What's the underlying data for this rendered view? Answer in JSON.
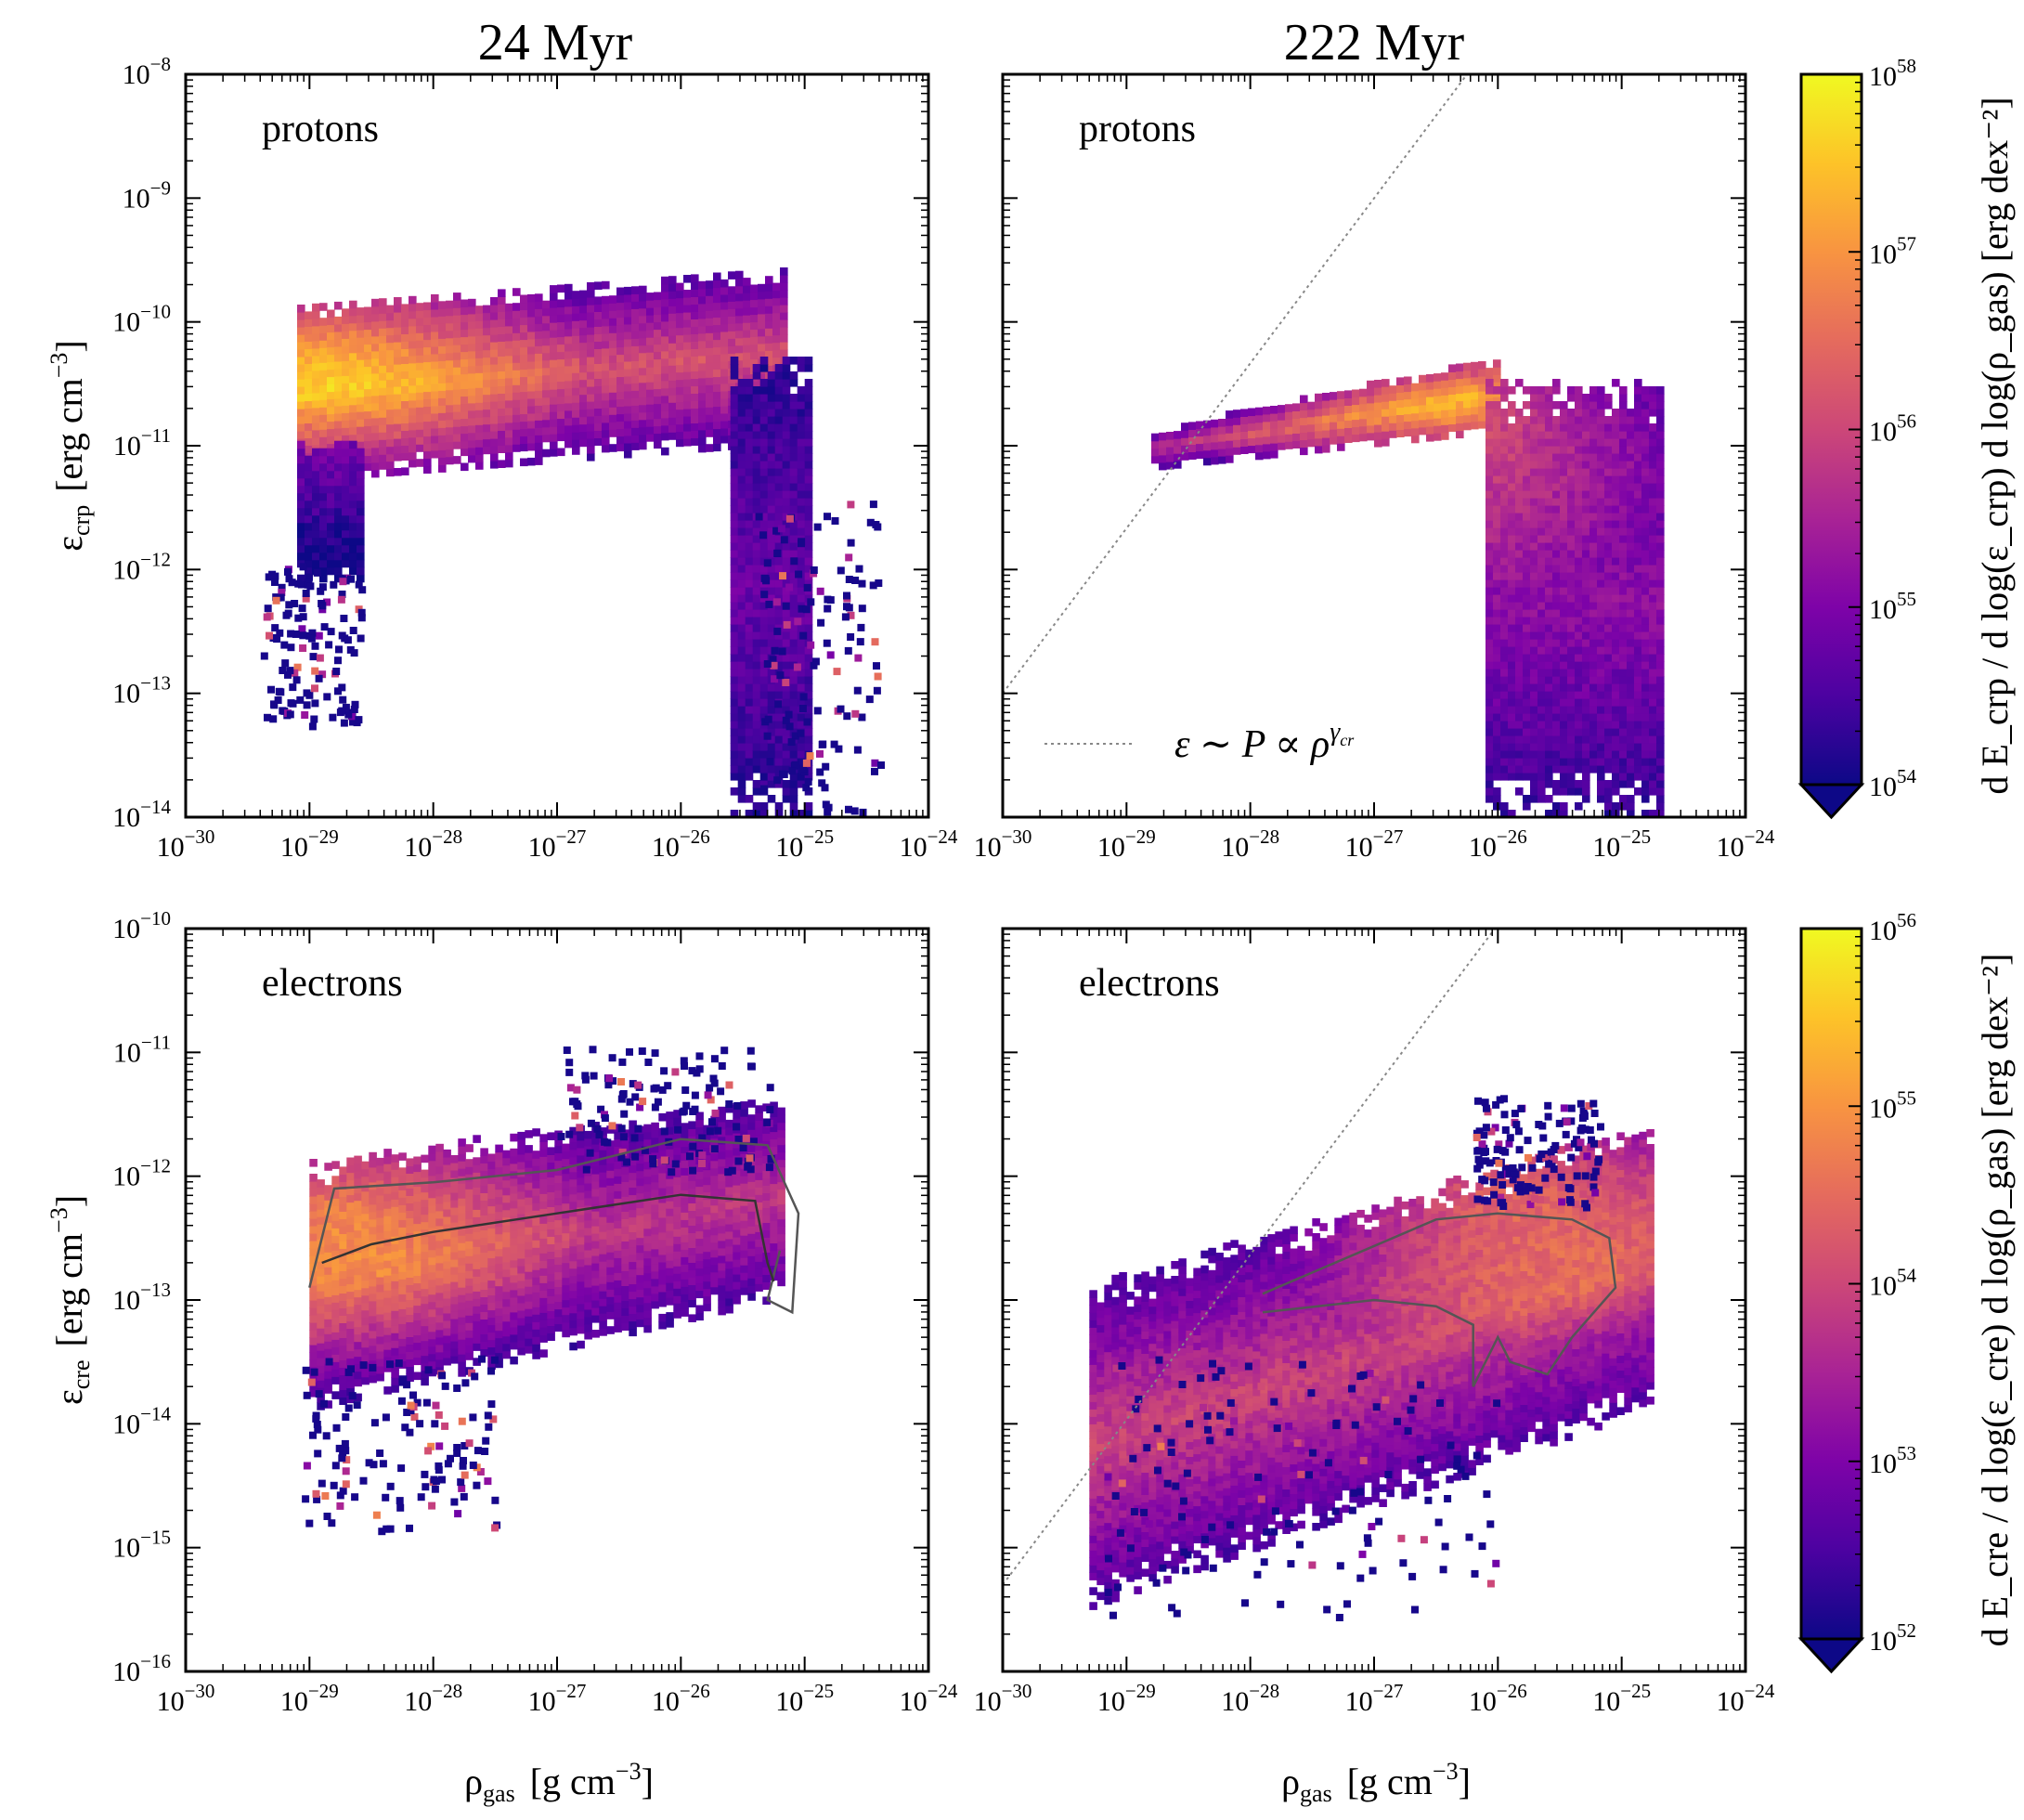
{
  "chart_data": {
    "type": "heatmap",
    "columns": [
      {
        "title": "24 Myr"
      },
      {
        "title": "222 Myr"
      }
    ],
    "x_axis": {
      "label": "ρ_gas [g cm^−3]",
      "label_main": "ρ",
      "label_sub": "gas",
      "label_units": "[g cm",
      "label_units_exp": "−3",
      "label_units_close": "]",
      "scale": "log",
      "xlim_exp": [
        -30,
        -24
      ],
      "ticks": [
        {
          "exp": -30,
          "text": "10",
          "sup": "−30"
        },
        {
          "exp": -29,
          "text": "10",
          "sup": "−29"
        },
        {
          "exp": -28,
          "text": "10",
          "sup": "−28"
        },
        {
          "exp": -27,
          "text": "10",
          "sup": "−27"
        },
        {
          "exp": -26,
          "text": "10",
          "sup": "−26"
        },
        {
          "exp": -25,
          "text": "10",
          "sup": "−25"
        },
        {
          "exp": -24,
          "text": "10",
          "sup": "−24"
        }
      ]
    },
    "rows": [
      {
        "species": "protons",
        "ylabel": "ε_crp [erg cm^−3]",
        "ylabel_main": "ε",
        "ylabel_sub": "crp",
        "ylabel_units": "[erg cm",
        "ylabel_units_exp": "−3",
        "ylabel_units_close": "]",
        "ylim_exp": [
          -14,
          -8
        ],
        "ticks": [
          {
            "exp": -14,
            "text": "10",
            "sup": "−14"
          },
          {
            "exp": -13,
            "text": "10",
            "sup": "−13"
          },
          {
            "exp": -12,
            "text": "10",
            "sup": "−12"
          },
          {
            "exp": -11,
            "text": "10",
            "sup": "−11"
          },
          {
            "exp": -10,
            "text": "10",
            "sup": "−10"
          },
          {
            "exp": -9,
            "text": "10",
            "sup": "−9"
          },
          {
            "exp": -8,
            "text": "10",
            "sup": "−8"
          }
        ],
        "colorbar": {
          "label": "d E_crp / d log(ε_crp) d log(ρ_gas) [erg dex^−2]",
          "label_text": "d E_crp / d log(ε_crp) d log(ρ_gas)  [erg dex⁻²]",
          "range_exp": [
            54,
            58
          ],
          "ticks": [
            {
              "exp": 54,
              "text": "10",
              "sup": "54"
            },
            {
              "exp": 55,
              "text": "10",
              "sup": "55"
            },
            {
              "exp": 56,
              "text": "10",
              "sup": "56"
            },
            {
              "exp": 57,
              "text": "10",
              "sup": "57"
            },
            {
              "exp": 58,
              "text": "10",
              "sup": "58"
            }
          ],
          "colormap": "plasma",
          "extend": "min"
        }
      },
      {
        "species": "electrons",
        "ylabel": "ε_cre [erg cm^−3]",
        "ylabel_main": "ε",
        "ylabel_sub": "cre",
        "ylabel_units": "[erg cm",
        "ylabel_units_exp": "−3",
        "ylabel_units_close": "]",
        "ylim_exp": [
          -16,
          -10
        ],
        "ticks": [
          {
            "exp": -16,
            "text": "10",
            "sup": "−16"
          },
          {
            "exp": -15,
            "text": "10",
            "sup": "−15"
          },
          {
            "exp": -14,
            "text": "10",
            "sup": "−14"
          },
          {
            "exp": -13,
            "text": "10",
            "sup": "−13"
          },
          {
            "exp": -12,
            "text": "10",
            "sup": "−12"
          },
          {
            "exp": -11,
            "text": "10",
            "sup": "−11"
          },
          {
            "exp": -10,
            "text": "10",
            "sup": "−10"
          }
        ],
        "colorbar": {
          "label": "d E_cre / d log(ε_cre) d log(ρ_gas) [erg dex^−2]",
          "label_text": "d E_cre / d log(ε_cre) d log(ρ_gas)  [erg dex⁻²]",
          "range_exp": [
            52,
            56
          ],
          "ticks": [
            {
              "exp": 52,
              "text": "10",
              "sup": "52"
            },
            {
              "exp": 53,
              "text": "10",
              "sup": "53"
            },
            {
              "exp": 54,
              "text": "10",
              "sup": "54"
            },
            {
              "exp": 55,
              "text": "10",
              "sup": "55"
            },
            {
              "exp": 56,
              "text": "10",
              "sup": "56"
            }
          ],
          "colormap": "plasma",
          "extend": "min"
        }
      }
    ],
    "panels": [
      {
        "row": 0,
        "col": 0,
        "label": "protons",
        "regions": [
          {
            "name": "upper-band",
            "x_exp": [
              -29.1,
              -25.2
            ],
            "y_exp_start": [
              -11.3,
              -9.9
            ],
            "y_exp_end": [
              -11.0,
              -9.6
            ],
            "intensity": 0.55
          },
          {
            "name": "high-density-tail",
            "x_exp": [
              -25.6,
              -25.0
            ],
            "y_exp": [
              -14.0,
              -10.3
            ],
            "intensity": 0.2
          },
          {
            "name": "low-density-edge",
            "x_exp": [
              -29.1,
              -28.6
            ],
            "y_exp": [
              -12.1,
              -11.0
            ],
            "intensity": 0.05
          }
        ],
        "scatter": [
          {
            "x_exp": [
              -29.4,
              -28.6
            ],
            "y_exp": [
              -13.3,
              -12.0
            ]
          },
          {
            "x_exp": [
              -25.4,
              -24.4
            ],
            "y_exp": [
              -14.0,
              -11.5
            ]
          }
        ],
        "peak": {
          "x_exp": -28.9,
          "y_exp": -10.3
        },
        "reference_line": null,
        "contours": []
      },
      {
        "row": 0,
        "col": 1,
        "label": "protons",
        "regions": [
          {
            "name": "low-density-band",
            "x_exp": [
              -28.8,
              -26.0
            ],
            "y_exp_start": [
              -11.2,
              -10.9
            ],
            "y_exp_end": [
              -10.9,
              -10.3
            ],
            "intensity": 0.45
          },
          {
            "name": "high-density-column",
            "x_exp": [
              -26.1,
              -24.7
            ],
            "y_exp": [
              -14.0,
              -10.5
            ],
            "intensity": 0.3
          }
        ],
        "scatter": [],
        "peak": {
          "x_exp": -26.4,
          "y_exp": -10.8
        },
        "reference_line": {
          "label": "ε ∼ P ∝ ρ^γcr",
          "label_pre": "ε ∼ P ∝ ρ",
          "label_sup": "γ",
          "label_sub": "cr",
          "slope": 1.333,
          "x0_exp": -30,
          "y0_exp": -13.0
        },
        "contours": []
      },
      {
        "row": 1,
        "col": 0,
        "label": "electrons",
        "regions": [
          {
            "name": "main-cloud",
            "x_exp": [
              -29.0,
              -25.2
            ],
            "y_exp_start": [
              -13.9,
              -11.9
            ],
            "y_exp_end": [
              -13.0,
              -11.4
            ],
            "intensity": 0.45
          }
        ],
        "scatter": [
          {
            "x_exp": [
              -29.1,
              -27.5
            ],
            "y_exp": [
              -14.9,
              -13.5
            ]
          },
          {
            "x_exp": [
              -27.0,
              -25.3
            ],
            "y_exp": [
              -12.0,
              -11.0
            ]
          }
        ],
        "peak": {
          "x_exp": -28.8,
          "y_exp": -12.3
        },
        "reference_line": null,
        "contours": [
          {
            "level": "outer",
            "points_exp": [
              [
                -29.0,
                -12.9
              ],
              [
                -28.8,
                -12.1
              ],
              [
                -28.0,
                -12.05
              ],
              [
                -27.0,
                -11.95
              ],
              [
                -26.0,
                -11.7
              ],
              [
                -25.3,
                -11.75
              ],
              [
                -25.05,
                -12.3
              ],
              [
                -25.1,
                -13.1
              ],
              [
                -25.3,
                -13.0
              ],
              [
                -25.2,
                -12.6
              ]
            ]
          },
          {
            "level": "inner",
            "points_exp": [
              [
                -28.9,
                -12.7
              ],
              [
                -28.5,
                -12.55
              ],
              [
                -28.0,
                -12.45
              ],
              [
                -27.0,
                -12.3
              ],
              [
                -26.0,
                -12.15
              ],
              [
                -25.4,
                -12.2
              ],
              [
                -25.3,
                -12.7
              ],
              [
                -25.25,
                -12.85
              ]
            ]
          }
        ]
      },
      {
        "row": 1,
        "col": 1,
        "label": "electrons",
        "regions": [
          {
            "name": "main-cloud",
            "x_exp": [
              -29.3,
              -24.8
            ],
            "y_exp_start": [
              -15.5,
              -12.9
            ],
            "y_exp_end": [
              -13.9,
              -11.6
            ],
            "intensity": 0.5
          }
        ],
        "scatter": [
          {
            "x_exp": [
              -29.2,
              -26.0
            ],
            "y_exp": [
              -15.6,
              -13.5
            ]
          },
          {
            "x_exp": [
              -26.2,
              -25.2
            ],
            "y_exp": [
              -12.3,
              -11.4
            ]
          }
        ],
        "peak": {
          "x_exp": -26.0,
          "y_exp": -12.0
        },
        "reference_line": {
          "label": "",
          "slope": 1.333,
          "x0_exp": -30,
          "y0_exp": -15.3
        },
        "contours": [
          {
            "level": "outer",
            "points_exp": [
              [
                -27.9,
                -12.95
              ],
              [
                -27.2,
                -12.65
              ],
              [
                -26.5,
                -12.35
              ],
              [
                -26.0,
                -12.3
              ],
              [
                -25.4,
                -12.35
              ],
              [
                -25.1,
                -12.5
              ],
              [
                -25.05,
                -12.9
              ],
              [
                -25.4,
                -13.3
              ],
              [
                -25.6,
                -13.6
              ],
              [
                -25.9,
                -13.5
              ],
              [
                -26.0,
                -13.3
              ],
              [
                -26.2,
                -13.7
              ],
              [
                -26.2,
                -13.2
              ],
              [
                -26.5,
                -13.05
              ],
              [
                -27.0,
                -13.0
              ],
              [
                -27.9,
                -13.1
              ]
            ]
          }
        ]
      }
    ]
  }
}
